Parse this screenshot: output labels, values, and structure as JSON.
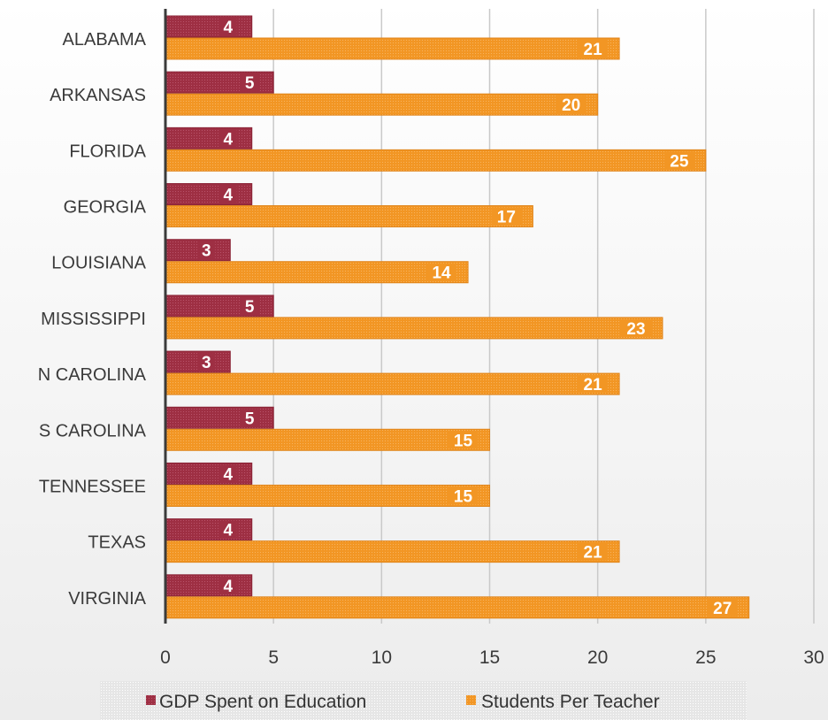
{
  "chart_data": {
    "type": "bar",
    "orientation": "horizontal",
    "categories": [
      "ALABAMA",
      "ARKANSAS",
      "FLORIDA",
      "GEORGIA",
      "LOUISIANA",
      "MISSISSIPPI",
      "N CAROLINA",
      "S CAROLINA",
      "TENNESSEE",
      "TEXAS",
      "VIRGINIA"
    ],
    "series": [
      {
        "name": "GDP Spent on Education",
        "color": "#9e2f43",
        "values": [
          4,
          5,
          4,
          4,
          3,
          5,
          3,
          5,
          4,
          4,
          4
        ]
      },
      {
        "name": "Students Per Teacher",
        "color": "#f29624",
        "values": [
          21,
          20,
          25,
          17,
          14,
          23,
          21,
          15,
          15,
          21,
          27
        ]
      }
    ],
    "xlim": [
      0,
      30
    ],
    "xticks": [
      0,
      5,
      10,
      15,
      20,
      25,
      30
    ],
    "grid": true,
    "data_labels": true,
    "legend_position": "bottom",
    "title": "",
    "xlabel": "",
    "ylabel": ""
  }
}
